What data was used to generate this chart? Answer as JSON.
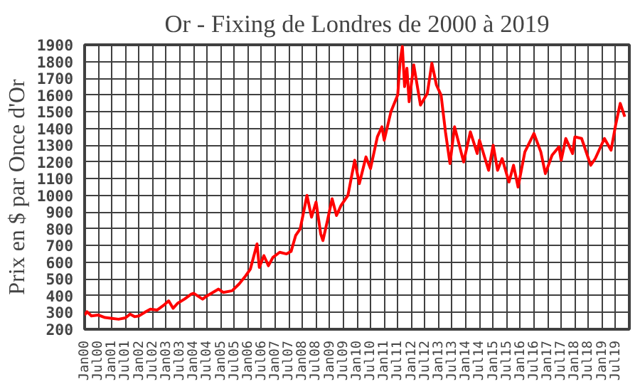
{
  "chart_data": {
    "type": "line",
    "title": "Or - Fixing de Londres de 2000 à 2019",
    "ylabel": "Prix en $ par Once d'Or",
    "x": [
      "2000-01",
      "2000-02",
      "2000-04",
      "2000-07",
      "2000-10",
      "2001-01",
      "2001-04",
      "2001-07",
      "2001-09",
      "2001-11",
      "2002-01",
      "2002-04",
      "2002-06",
      "2002-09",
      "2002-12",
      "2003-02",
      "2003-04",
      "2003-06",
      "2003-09",
      "2003-12",
      "2004-01",
      "2004-05",
      "2004-07",
      "2004-12",
      "2005-02",
      "2005-06",
      "2005-09",
      "2005-12",
      "2006-02",
      "2006-05",
      "2006-06",
      "2006-08",
      "2006-10",
      "2006-12",
      "2007-03",
      "2007-06",
      "2007-08",
      "2007-10",
      "2007-12",
      "2008-03",
      "2008-05",
      "2008-07",
      "2008-09",
      "2008-10",
      "2008-12",
      "2009-02",
      "2009-04",
      "2009-06",
      "2009-09",
      "2009-12",
      "2010-02",
      "2010-05",
      "2010-07",
      "2010-10",
      "2010-12",
      "2011-01",
      "2011-04",
      "2011-07",
      "2011-08",
      "2011-09",
      "2011-10",
      "2011-11",
      "2011-12",
      "2012-02",
      "2012-05",
      "2012-08",
      "2012-10",
      "2012-12",
      "2013-02",
      "2013-04",
      "2013-06",
      "2013-08",
      "2013-12",
      "2014-03",
      "2014-06",
      "2014-07",
      "2014-11",
      "2015-01",
      "2015-03",
      "2015-05",
      "2015-08",
      "2015-10",
      "2015-12",
      "2016-03",
      "2016-07",
      "2016-10",
      "2016-12",
      "2017-03",
      "2017-06",
      "2017-07",
      "2017-09",
      "2017-12",
      "2018-01",
      "2018-04",
      "2018-08",
      "2018-10",
      "2019-02",
      "2019-05",
      "2019-07",
      "2019-09",
      "2019-11"
    ],
    "series": [
      {
        "color": "#ff0000",
        "values": [
          285,
          305,
          280,
          285,
          270,
          265,
          260,
          268,
          290,
          275,
          280,
          305,
          320,
          315,
          345,
          370,
          325,
          355,
          380,
          410,
          415,
          380,
          400,
          440,
          420,
          430,
          470,
          520,
          560,
          710,
          570,
          640,
          580,
          630,
          660,
          650,
          665,
          760,
          800,
          1000,
          870,
          960,
          770,
          730,
          850,
          980,
          880,
          940,
          1000,
          1210,
          1070,
          1230,
          1160,
          1350,
          1410,
          1330,
          1500,
          1600,
          1800,
          1890,
          1650,
          1760,
          1560,
          1780,
          1540,
          1610,
          1790,
          1660,
          1600,
          1380,
          1190,
          1410,
          1200,
          1380,
          1250,
          1330,
          1150,
          1300,
          1150,
          1220,
          1080,
          1180,
          1050,
          1260,
          1370,
          1260,
          1130,
          1240,
          1290,
          1210,
          1340,
          1250,
          1350,
          1340,
          1180,
          1220,
          1340,
          1270,
          1420,
          1550,
          1470
        ]
      }
    ],
    "xlim": [
      "2000-01",
      "2020-01"
    ],
    "xticks": [
      {
        "value": "2000-01",
        "label": "Jan00"
      },
      {
        "value": "2000-07",
        "label": "Jul00"
      },
      {
        "value": "2001-01",
        "label": "Jan01"
      },
      {
        "value": "2001-07",
        "label": "Jul01"
      },
      {
        "value": "2002-01",
        "label": "Jan02"
      },
      {
        "value": "2002-07",
        "label": "Jul02"
      },
      {
        "value": "2003-01",
        "label": "Jan03"
      },
      {
        "value": "2003-07",
        "label": "Jul03"
      },
      {
        "value": "2004-01",
        "label": "Jan04"
      },
      {
        "value": "2004-07",
        "label": "Jul04"
      },
      {
        "value": "2005-01",
        "label": "Jan05"
      },
      {
        "value": "2005-07",
        "label": "Jul05"
      },
      {
        "value": "2006-01",
        "label": "Jan06"
      },
      {
        "value": "2006-07",
        "label": "Jul06"
      },
      {
        "value": "2007-01",
        "label": "Jan07"
      },
      {
        "value": "2007-07",
        "label": "Jul07"
      },
      {
        "value": "2008-01",
        "label": "Jan08"
      },
      {
        "value": "2008-07",
        "label": "Jul08"
      },
      {
        "value": "2009-01",
        "label": "Jan09"
      },
      {
        "value": "2009-07",
        "label": "Jul09"
      },
      {
        "value": "2010-01",
        "label": "Jan10"
      },
      {
        "value": "2010-07",
        "label": "Jul10"
      },
      {
        "value": "2011-01",
        "label": "Jan11"
      },
      {
        "value": "2011-07",
        "label": "Jul11"
      },
      {
        "value": "2012-01",
        "label": "Jan12"
      },
      {
        "value": "2012-07",
        "label": "Jul12"
      },
      {
        "value": "2013-01",
        "label": "Jan13"
      },
      {
        "value": "2013-07",
        "label": "Jul13"
      },
      {
        "value": "2014-01",
        "label": "Jan14"
      },
      {
        "value": "2014-07",
        "label": "Jul14"
      },
      {
        "value": "2015-01",
        "label": "Jan15"
      },
      {
        "value": "2015-07",
        "label": "Jul15"
      },
      {
        "value": "2016-01",
        "label": "Jan16"
      },
      {
        "value": "2016-07",
        "label": "Jul16"
      },
      {
        "value": "2017-01",
        "label": "Jan17"
      },
      {
        "value": "2017-07",
        "label": "Jul17"
      },
      {
        "value": "2018-01",
        "label": "Jan18"
      },
      {
        "value": "2018-07",
        "label": "Jul18"
      },
      {
        "value": "2019-01",
        "label": "Jan19"
      },
      {
        "value": "2019-07",
        "label": "Jul19"
      },
      {
        "value": "2020-01",
        "label": null
      }
    ],
    "ylim": [
      200,
      1900
    ],
    "yticks": [
      200,
      300,
      400,
      500,
      600,
      700,
      800,
      900,
      1000,
      1100,
      1200,
      1300,
      1400,
      1500,
      1600,
      1700,
      1800,
      1900
    ],
    "grid": true,
    "line_style": "solid"
  }
}
